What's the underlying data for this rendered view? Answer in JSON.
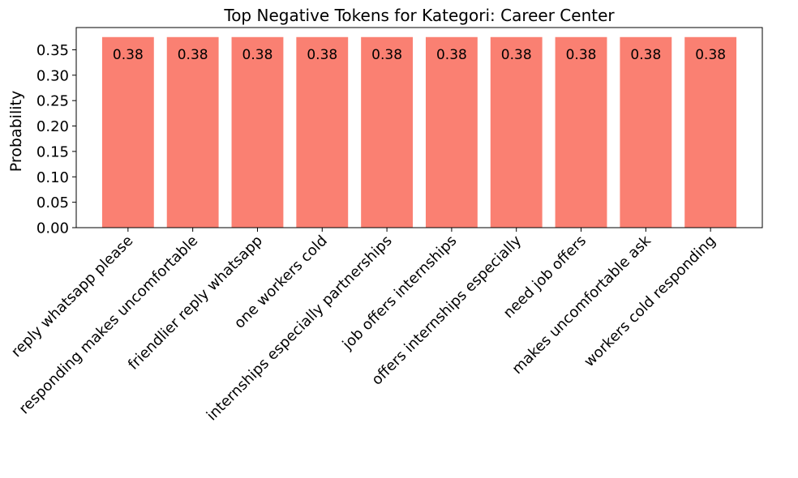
{
  "chart_data": {
    "type": "bar",
    "title": "Top Negative Tokens for Kategori: Career Center",
    "xlabel": "",
    "ylabel": "Probability",
    "categories": [
      "reply whatsapp please",
      "responding makes uncomfortable",
      "friendlier reply whatsapp",
      "one workers cold",
      "internships especially partnerships",
      "job offers internships",
      "offers internships especially",
      "need job offers",
      "makes uncomfortable ask",
      "workers cold responding"
    ],
    "values": [
      0.375,
      0.375,
      0.375,
      0.375,
      0.375,
      0.375,
      0.375,
      0.375,
      0.375,
      0.375
    ],
    "data_labels": [
      "0.38",
      "0.38",
      "0.38",
      "0.38",
      "0.38",
      "0.38",
      "0.38",
      "0.38",
      "0.38",
      "0.38"
    ],
    "ylim": [
      0,
      0.39375
    ],
    "yticks": [
      0.0,
      0.05,
      0.1,
      0.15,
      0.2,
      0.25,
      0.3,
      0.35
    ],
    "ytick_labels": [
      "0.00",
      "0.05",
      "0.10",
      "0.15",
      "0.20",
      "0.25",
      "0.30",
      "0.35"
    ],
    "bar_color": "#fa8072",
    "grid": false,
    "legend": "none"
  }
}
